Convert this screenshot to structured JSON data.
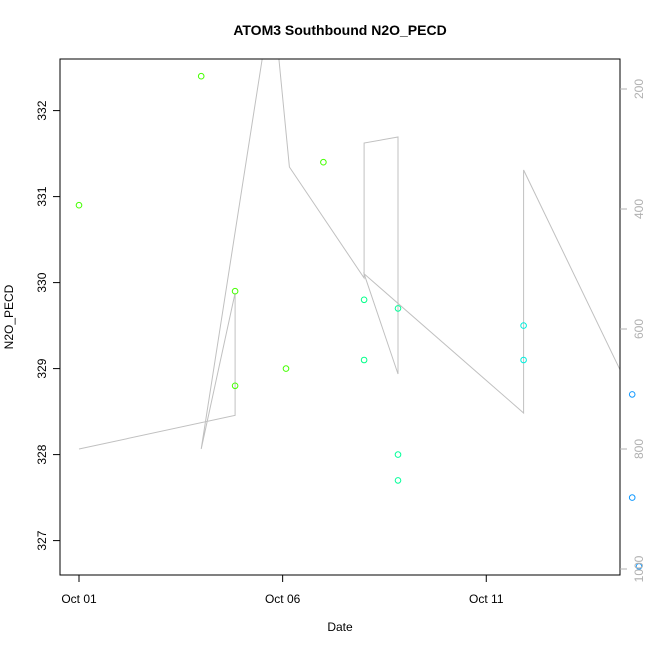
{
  "chart_data": {
    "type": "scatter",
    "title": "ATOM3 Southbound N2O_PECD",
    "xlabel": "Date",
    "ylabel": "N2O_PECD",
    "x_ticks": [
      {
        "label": "Oct 01",
        "date": "2016-10-01"
      },
      {
        "label": "Oct 06",
        "date": "2016-10-06"
      },
      {
        "label": "Oct 11",
        "date": "2016-10-11"
      }
    ],
    "xlim": [
      "2016-10-01T00:00",
      "2016-10-14T18:00"
    ],
    "ylim": [
      326.6,
      332.6
    ],
    "y_ticks": [
      327,
      328,
      329,
      330,
      331,
      332
    ],
    "y2_ticks": [
      200,
      400,
      600,
      800,
      1000
    ],
    "y2lim": [
      1010,
      150
    ],
    "y2_reversed": true,
    "grid": false,
    "points": [
      {
        "t": "2016-10-01T00:00",
        "y": 330.9,
        "color": "#44ff00"
      },
      {
        "t": "2016-10-04T00:00",
        "y": 332.4,
        "color": "#44ff00"
      },
      {
        "t": "2016-10-04T20:00",
        "y": 329.9,
        "color": "#44ff00"
      },
      {
        "t": "2016-10-04T20:00",
        "y": 328.8,
        "color": "#44ff00"
      },
      {
        "t": "2016-10-06T02:00",
        "y": 329.0,
        "color": "#44ff00"
      },
      {
        "t": "2016-10-07T00:00",
        "y": 331.4,
        "color": "#44ff00"
      },
      {
        "t": "2016-10-08T00:00",
        "y": 329.8,
        "color": "#00ff88"
      },
      {
        "t": "2016-10-08T00:00",
        "y": 329.1,
        "color": "#00ff88"
      },
      {
        "t": "2016-10-08T20:00",
        "y": 329.7,
        "color": "#00ff99"
      },
      {
        "t": "2016-10-08T20:00",
        "y": 328.0,
        "color": "#00ff99"
      },
      {
        "t": "2016-10-08T20:00",
        "y": 327.7,
        "color": "#00ff99"
      },
      {
        "t": "2016-10-11T22:00",
        "y": 329.5,
        "color": "#00eedd"
      },
      {
        "t": "2016-10-11T22:00",
        "y": 329.1,
        "color": "#00eedd"
      },
      {
        "t": "2016-10-14T14:00",
        "y": 328.7,
        "color": "#1199ff"
      },
      {
        "t": "2016-10-14T14:00",
        "y": 327.5,
        "color": "#1199ff"
      },
      {
        "t": "2016-10-14T18:00",
        "y": 326.7,
        "color": "#1199ff"
      }
    ],
    "pressure_trace": {
      "color": "#c0c0c0",
      "points": [
        {
          "t": "2016-10-01T00:00",
          "p": 800
        },
        {
          "t": "2016-10-04T20:00",
          "p": 744
        },
        {
          "t": "2016-10-04T20:00",
          "p": 540
        },
        {
          "t": "2016-10-04T00:00",
          "p": 800
        },
        {
          "t": "2016-10-05T18:00",
          "p": 40
        },
        {
          "t": "2016-10-06T04:00",
          "p": 330
        },
        {
          "t": "2016-10-08T00:00",
          "p": 515
        },
        {
          "t": "2016-10-08T00:00",
          "p": 290
        },
        {
          "t": "2016-10-08T20:00",
          "p": 280
        },
        {
          "t": "2016-10-08T20:00",
          "p": 675
        },
        {
          "t": "2016-10-08T00:00",
          "p": 508
        },
        {
          "t": "2016-10-11T22:00",
          "p": 740
        },
        {
          "t": "2016-10-11T22:00",
          "p": 335
        },
        {
          "t": "2016-10-14T14:00",
          "p": 710
        },
        {
          "t": "2016-10-14T14:00",
          "p": 545
        },
        {
          "t": "2016-10-14T18:00",
          "p": 775
        }
      ]
    }
  }
}
